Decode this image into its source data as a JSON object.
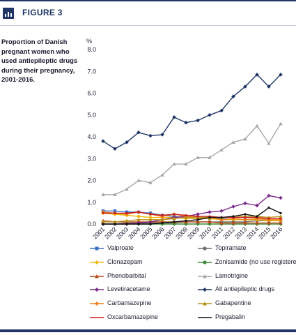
{
  "figure": {
    "label": "FIGURE 3",
    "icon": "bar-chart-icon"
  },
  "caption": "Proportion of Danish pregnant women who used antiepileptic drugs during their pregnancy, 2001-2016.",
  "chart_data": {
    "type": "line",
    "title": "",
    "ylabel": "%",
    "xlabel": "",
    "ylim": [
      0,
      8
    ],
    "yticks": [
      "0.0",
      "1.0",
      "2.0",
      "3.0",
      "4.0",
      "5.0",
      "6.0",
      "7.0",
      "8.0"
    ],
    "grid": false,
    "legend_position": "bottom",
    "x": [
      "2001",
      "2002",
      "2003",
      "2004",
      "2005",
      "2006",
      "2007",
      "2008",
      "2009",
      "2010",
      "2011",
      "2012",
      "2013",
      "2014",
      "2015",
      "2016"
    ],
    "series": [
      {
        "name": "Valproate",
        "color": "#3a6fc4",
        "marker": "square",
        "values": [
          0.6,
          0.6,
          0.55,
          0.55,
          0.5,
          0.4,
          0.35,
          0.3,
          0.3,
          0.25,
          0.25,
          0.2,
          0.2,
          0.2,
          0.15,
          0.15
        ]
      },
      {
        "name": "Topiramate",
        "color": "#6d6d6d",
        "marker": "circle",
        "values": [
          0.0,
          0.0,
          0.05,
          0.05,
          0.05,
          0.05,
          0.05,
          0.1,
          0.1,
          0.1,
          0.1,
          0.1,
          0.1,
          0.15,
          0.15,
          0.15
        ]
      },
      {
        "name": "Clonazepam",
        "color": "#f2b705",
        "marker": "diamond",
        "values": [
          0.5,
          0.45,
          0.4,
          0.35,
          0.3,
          0.3,
          0.3,
          0.25,
          0.25,
          0.25,
          0.2,
          0.2,
          0.2,
          0.2,
          0.15,
          0.15
        ]
      },
      {
        "name": "Zonisamide (no use registered)",
        "color": "#3d8b37",
        "marker": "circle",
        "values": [
          0,
          0,
          0,
          0,
          0,
          0,
          0,
          0,
          0,
          0,
          0,
          0,
          0,
          0,
          0,
          0
        ]
      },
      {
        "name": "Phenobarbital",
        "color": "#b84a1a",
        "marker": "triangle",
        "values": [
          0.15,
          0.1,
          0.1,
          0.1,
          0.1,
          0.1,
          0.1,
          0.1,
          0.1,
          0.1,
          0.05,
          0.05,
          0.05,
          0.05,
          0.05,
          0.05
        ]
      },
      {
        "name": "Lamotrigine",
        "color": "#a8a8a8",
        "marker": "triangle",
        "values": [
          1.35,
          1.35,
          1.6,
          2.0,
          1.9,
          2.25,
          2.75,
          2.75,
          3.05,
          3.05,
          3.4,
          3.75,
          3.9,
          4.5,
          3.7,
          4.6
        ]
      },
      {
        "name": "Levetiracetame",
        "color": "#7a2a8c",
        "marker": "diamond",
        "values": [
          0.0,
          0.0,
          0.0,
          0.05,
          0.1,
          0.2,
          0.3,
          0.35,
          0.45,
          0.55,
          0.6,
          0.8,
          0.95,
          0.85,
          1.3,
          1.2
        ]
      },
      {
        "name": "All antiepileptic drugs",
        "color": "#1f3566",
        "marker": "diamond",
        "values": [
          3.8,
          3.45,
          3.75,
          4.2,
          4.05,
          4.1,
          4.9,
          4.65,
          4.75,
          5.0,
          5.2,
          5.85,
          6.3,
          6.85,
          6.3,
          6.85
        ]
      },
      {
        "name": "Carbamazepine",
        "color": "#f07d1a",
        "marker": "diamond",
        "values": [
          0.55,
          0.5,
          0.45,
          0.55,
          0.45,
          0.35,
          0.45,
          0.35,
          0.3,
          0.3,
          0.2,
          0.25,
          0.2,
          0.25,
          0.2,
          0.2
        ]
      },
      {
        "name": "Gabapentine",
        "color": "#b8931a",
        "marker": "triangle",
        "values": [
          0.1,
          0.1,
          0.15,
          0.2,
          0.2,
          0.2,
          0.25,
          0.3,
          0.3,
          0.3,
          0.3,
          0.35,
          0.35,
          0.35,
          0.3,
          0.35
        ]
      },
      {
        "name": "Oxcarbamazepine",
        "color": "#c81e1e",
        "marker": "line",
        "values": [
          0.5,
          0.5,
          0.5,
          0.55,
          0.45,
          0.4,
          0.45,
          0.4,
          0.35,
          0.35,
          0.3,
          0.3,
          0.3,
          0.3,
          0.25,
          0.25
        ]
      },
      {
        "name": "Pregabalin",
        "color": "#111111",
        "marker": "line",
        "values": [
          0.0,
          0.0,
          0.0,
          0.0,
          0.0,
          0.05,
          0.1,
          0.15,
          0.2,
          0.3,
          0.3,
          0.35,
          0.45,
          0.35,
          0.75,
          0.5
        ]
      }
    ]
  }
}
